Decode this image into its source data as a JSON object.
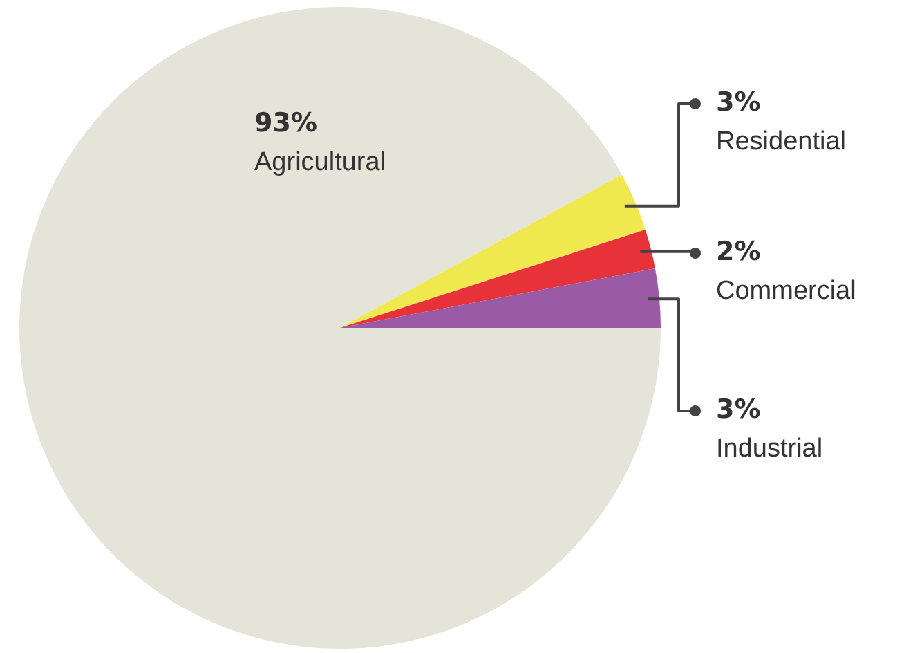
{
  "chart_data": {
    "type": "pie",
    "categories": [
      "Agricultural",
      "Residential",
      "Commercial",
      "Industrial"
    ],
    "values": [
      93,
      3,
      2,
      3
    ],
    "value_labels": [
      "93%",
      "3%",
      "2%",
      "3%"
    ],
    "colors": [
      "#e5e4d8",
      "#efe84f",
      "#e8323a",
      "#9b5aa6"
    ],
    "legend": false
  }
}
